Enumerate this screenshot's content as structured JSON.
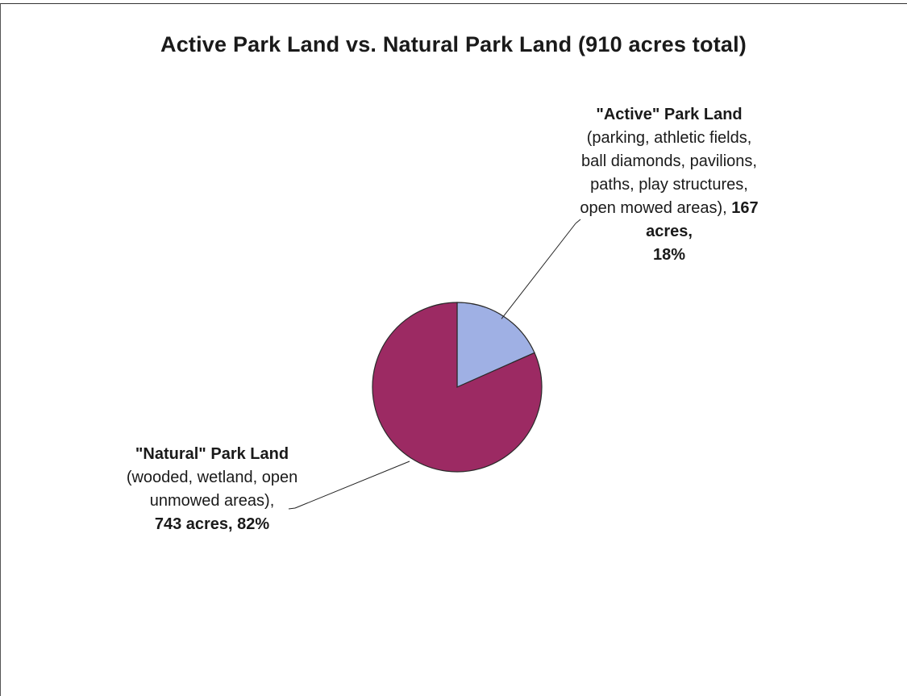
{
  "chart_data": {
    "type": "pie",
    "title": "Active Park Land vs. Natural Park Land (910 acres total)",
    "slices": [
      {
        "name": "\"Active\" Park Land",
        "description": "(parking, athletic fields, ball diamonds, pavilions, paths, play structures, open mowed areas),",
        "acres": 167,
        "value_label": "167 acres,",
        "percent": 18,
        "percent_label": "18%",
        "color": "#9fb0e4"
      },
      {
        "name": "\"Natural\" Park Land",
        "description": "(wooded, wetland, open unmowed areas),",
        "acres": 743,
        "value_label": "743 acres, 82%",
        "percent": 82,
        "color": "#9c2a63"
      }
    ]
  }
}
